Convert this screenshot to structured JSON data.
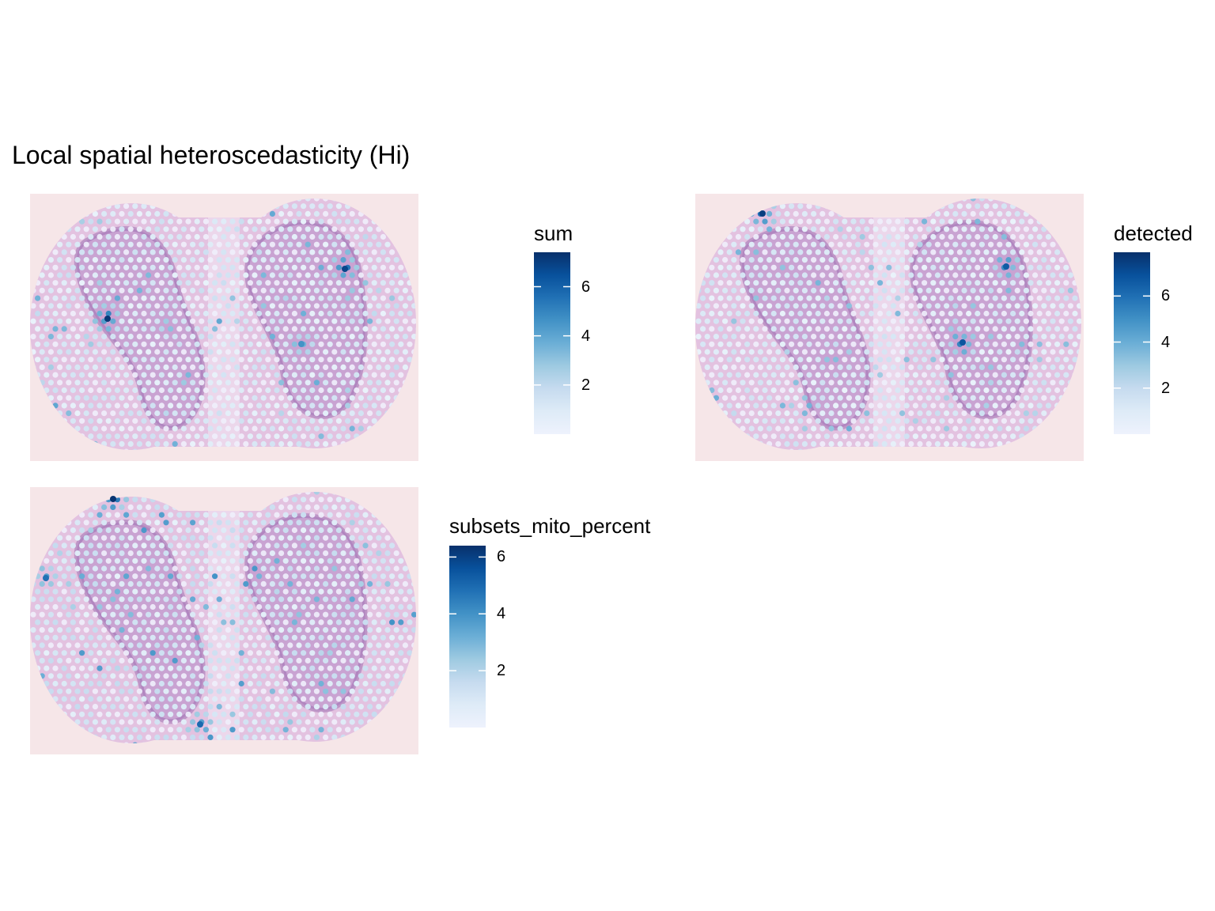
{
  "title": "Local spatial heteroscedasticity (Hi)",
  "colors": {
    "tissue_bg": "#f6e6e8",
    "tissue": "#e3c2e0",
    "stain": "#9a6aae",
    "spot_low": "#eaf0fb",
    "spot_high": "#08479a"
  },
  "chart_data": [
    {
      "type": "heatmap",
      "title": "",
      "legend_title": "sum",
      "legend_breaks": [
        2,
        4,
        6
      ],
      "legend_range": [
        0,
        7.4
      ],
      "hotspots": [
        {
          "name": "left-lobe-inner",
          "value": 7.2
        },
        {
          "name": "right-lobe-upper",
          "value": 6.8
        },
        {
          "name": "right-lobe-center",
          "value": 4.6
        }
      ]
    },
    {
      "type": "heatmap",
      "title": "",
      "legend_title": "detected",
      "legend_breaks": [
        2,
        4,
        6
      ],
      "legend_range": [
        0,
        7.9
      ],
      "hotspots": [
        {
          "name": "top-left-edge",
          "value": 7.5
        },
        {
          "name": "right-lobe-upper",
          "value": 6.6
        },
        {
          "name": "right-lobe-center",
          "value": 6.8
        }
      ]
    },
    {
      "type": "heatmap",
      "title": "",
      "legend_title": "subsets_mito_percent",
      "legend_breaks": [
        2,
        4,
        6
      ],
      "legend_range": [
        0,
        6.4
      ],
      "hotspots": [
        {
          "name": "top-left-edge",
          "value": 6.3
        },
        {
          "name": "left-edge",
          "value": 4.8
        },
        {
          "name": "bottom-center",
          "value": 5.0
        }
      ]
    }
  ]
}
